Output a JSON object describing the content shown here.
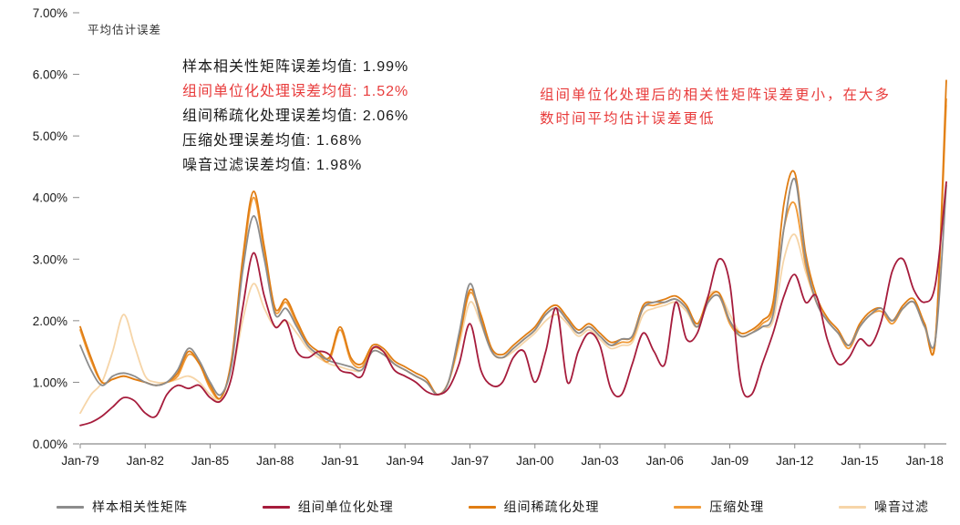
{
  "colors": {
    "background": "#ffffff",
    "axis": "#8a8a8a",
    "tick-text": "#1a1a1a",
    "red-text": "#e83c3c"
  },
  "annotations": {
    "stats": [
      {
        "text": "样本相关性矩阵误差均值: 1.99%",
        "highlight": false
      },
      {
        "text": "组间单位化处理误差均值: 1.52%",
        "highlight": true
      },
      {
        "text": "组间稀疏化处理误差均值: 2.06%",
        "highlight": false
      },
      {
        "text": "压缩处理误差均值: 1.68%",
        "highlight": false
      },
      {
        "text": "噪音过滤误差均值: 1.98%",
        "highlight": false
      }
    ],
    "callout": "组间单位化处理后的相关性矩阵误差更小，在大多数时间平均估计误差更低"
  },
  "chart_data": {
    "type": "line",
    "title": "",
    "ylabel": "平均估计误差",
    "xlabel": "",
    "ylim": [
      0,
      7
    ],
    "grid": false,
    "legend_position": "bottom",
    "y_ticks": {
      "values": [
        0,
        1,
        2,
        3,
        4,
        5,
        6,
        7
      ],
      "labels": [
        "0.00%",
        "1.00%",
        "2.00%",
        "3.00%",
        "4.00%",
        "5.00%",
        "6.00%",
        "7.00%"
      ]
    },
    "x_ticks": {
      "years": [
        1979,
        1982,
        1985,
        1988,
        1991,
        1994,
        1997,
        2000,
        2003,
        2006,
        2009,
        2012,
        2015,
        2018
      ],
      "labels": [
        "Jan-79",
        "Jan-82",
        "Jan-85",
        "Jan-88",
        "Jan-91",
        "Jan-94",
        "Jan-97",
        "Jan-00",
        "Jan-03",
        "Jan-06",
        "Jan-09",
        "Jan-12",
        "Jan-15",
        "Jan-18"
      ]
    },
    "x": [
      1979,
      1979.5,
      1980,
      1980.5,
      1981,
      1981.5,
      1982,
      1982.5,
      1983,
      1983.5,
      1984,
      1984.5,
      1985,
      1985.5,
      1986,
      1986.5,
      1987,
      1987.5,
      1988,
      1988.5,
      1989,
      1989.5,
      1990,
      1990.5,
      1991,
      1991.5,
      1992,
      1992.5,
      1993,
      1993.5,
      1994,
      1994.5,
      1995,
      1995.5,
      1996,
      1996.5,
      1997,
      1997.5,
      1998,
      1998.5,
      1999,
      1999.5,
      2000,
      2000.5,
      2001,
      2001.5,
      2002,
      2002.5,
      2003,
      2003.5,
      2004,
      2004.5,
      2005,
      2005.5,
      2006,
      2006.5,
      2007,
      2007.5,
      2008,
      2008.5,
      2009,
      2009.5,
      2010,
      2010.5,
      2011,
      2011.5,
      2012,
      2012.5,
      2013,
      2013.5,
      2014,
      2014.5,
      2015,
      2015.5,
      2016,
      2016.5,
      2017,
      2017.5,
      2018,
      2018.5,
      2019
    ],
    "series": [
      {
        "key": "sample-correlation-matrix",
        "name": "样本相关性矩阵",
        "color": "#8c8c8c",
        "mean_label": "1.99%",
        "values": [
          1.6,
          1.2,
          0.95,
          1.1,
          1.15,
          1.1,
          1.0,
          0.95,
          1.0,
          1.2,
          1.55,
          1.35,
          1.0,
          0.8,
          1.3,
          2.8,
          3.7,
          3.0,
          2.1,
          2.2,
          1.9,
          1.6,
          1.45,
          1.35,
          1.3,
          1.25,
          1.2,
          1.5,
          1.45,
          1.3,
          1.2,
          1.1,
          1.0,
          0.8,
          1.0,
          1.8,
          2.6,
          2.0,
          1.5,
          1.4,
          1.55,
          1.7,
          1.85,
          2.1,
          2.2,
          2.0,
          1.8,
          1.9,
          1.75,
          1.6,
          1.7,
          1.75,
          2.2,
          2.3,
          2.3,
          2.35,
          2.2,
          1.9,
          2.3,
          2.4,
          2.0,
          1.75,
          1.8,
          1.9,
          2.1,
          3.5,
          4.3,
          3.0,
          2.3,
          2.0,
          1.8,
          1.6,
          1.9,
          2.1,
          2.2,
          2.0,
          2.2,
          2.3,
          1.9,
          1.7,
          4.2
        ]
      },
      {
        "key": "unitization",
        "name": "组间单位化处理",
        "color": "#a61c3c",
        "mean_label": "1.52%",
        "values": [
          0.3,
          0.35,
          0.45,
          0.6,
          0.75,
          0.7,
          0.5,
          0.45,
          0.8,
          0.95,
          0.9,
          0.95,
          0.75,
          0.7,
          1.1,
          2.2,
          3.1,
          2.4,
          1.9,
          2.0,
          1.5,
          1.4,
          1.5,
          1.45,
          1.2,
          1.15,
          1.1,
          1.55,
          1.5,
          1.2,
          1.1,
          1.0,
          0.85,
          0.8,
          0.9,
          1.3,
          1.95,
          1.2,
          0.95,
          1.0,
          1.4,
          1.5,
          1.0,
          1.5,
          2.2,
          1.0,
          1.5,
          1.8,
          1.6,
          0.9,
          0.8,
          1.3,
          1.8,
          1.5,
          1.3,
          2.3,
          1.7,
          1.8,
          2.4,
          3.0,
          2.6,
          1.0,
          0.8,
          1.3,
          1.8,
          2.4,
          2.75,
          2.3,
          2.4,
          1.7,
          1.3,
          1.4,
          1.7,
          1.6,
          2.0,
          2.8,
          3.0,
          2.5,
          2.3,
          2.6,
          4.25
        ]
      },
      {
        "key": "sparsification",
        "name": "组间稀疏化处理",
        "color": "#e07d13",
        "mean_label": "2.06%",
        "values": [
          1.9,
          1.4,
          1.0,
          1.05,
          1.1,
          1.05,
          1.0,
          0.95,
          1.0,
          1.15,
          1.5,
          1.3,
          0.95,
          0.75,
          1.4,
          3.0,
          4.1,
          3.2,
          2.2,
          2.35,
          2.0,
          1.65,
          1.5,
          1.4,
          1.9,
          1.4,
          1.3,
          1.6,
          1.55,
          1.35,
          1.25,
          1.15,
          1.05,
          0.8,
          1.0,
          1.7,
          2.5,
          2.1,
          1.55,
          1.45,
          1.6,
          1.75,
          1.9,
          2.15,
          2.25,
          2.05,
          1.85,
          1.95,
          1.8,
          1.65,
          1.7,
          1.75,
          2.25,
          2.3,
          2.35,
          2.4,
          2.25,
          1.95,
          2.35,
          2.45,
          2.0,
          1.8,
          1.85,
          2.0,
          2.3,
          3.9,
          4.4,
          3.1,
          2.4,
          2.05,
          1.85,
          1.6,
          1.95,
          2.15,
          2.2,
          2.0,
          2.25,
          2.35,
          1.95,
          1.7,
          5.9
        ]
      },
      {
        "key": "compression",
        "name": "压缩处理",
        "color": "#f09a38",
        "mean_label": "1.68%",
        "values": [
          1.85,
          1.35,
          1.0,
          1.05,
          1.1,
          1.05,
          1.0,
          0.95,
          1.0,
          1.1,
          1.45,
          1.3,
          0.9,
          0.75,
          1.35,
          2.9,
          4.0,
          3.1,
          2.15,
          2.3,
          1.95,
          1.6,
          1.45,
          1.35,
          1.85,
          1.35,
          1.25,
          1.55,
          1.5,
          1.3,
          1.2,
          1.1,
          1.0,
          0.8,
          1.0,
          1.7,
          2.45,
          2.05,
          1.5,
          1.4,
          1.55,
          1.7,
          1.85,
          2.1,
          2.2,
          2.0,
          1.8,
          1.9,
          1.75,
          1.6,
          1.65,
          1.7,
          2.2,
          2.25,
          2.3,
          2.35,
          2.2,
          1.9,
          2.3,
          2.4,
          1.95,
          1.75,
          1.8,
          1.95,
          2.2,
          3.5,
          3.9,
          2.9,
          2.3,
          2.0,
          1.8,
          1.55,
          1.9,
          2.1,
          2.15,
          1.95,
          2.2,
          2.3,
          1.9,
          1.7,
          5.6
        ]
      },
      {
        "key": "noise-filter",
        "name": "噪音过滤",
        "color": "#f6d5a8",
        "mean_label": "1.98%",
        "values": [
          0.5,
          0.8,
          1.0,
          1.5,
          2.1,
          1.6,
          1.1,
          1.0,
          1.0,
          1.05,
          1.1,
          1.0,
          0.8,
          0.7,
          1.1,
          2.0,
          2.6,
          2.2,
          1.9,
          2.0,
          1.8,
          1.55,
          1.4,
          1.3,
          1.25,
          1.2,
          1.2,
          1.5,
          1.45,
          1.3,
          1.2,
          1.1,
          1.0,
          0.8,
          1.0,
          1.6,
          2.3,
          1.95,
          1.5,
          1.4,
          1.5,
          1.65,
          1.8,
          2.0,
          2.1,
          1.95,
          1.75,
          1.85,
          1.7,
          1.55,
          1.6,
          1.65,
          2.1,
          2.2,
          2.25,
          2.3,
          2.15,
          1.9,
          2.4,
          2.45,
          2.1,
          1.8,
          1.85,
          1.9,
          2.0,
          3.0,
          3.4,
          2.8,
          2.3,
          2.0,
          1.8,
          1.6,
          1.9,
          2.1,
          2.2,
          2.0,
          2.2,
          2.3,
          1.95,
          1.75,
          5.5
        ]
      }
    ]
  }
}
